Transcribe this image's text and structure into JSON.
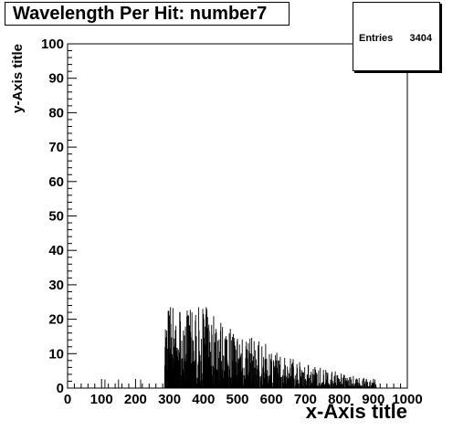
{
  "chart_data": {
    "type": "bar",
    "title": "Wavelength Per Hit: number7",
    "xlabel": "x-Axis title",
    "ylabel": "y-Axis title",
    "xlim": [
      0,
      1000
    ],
    "ylim": [
      0,
      100
    ],
    "xticks": [
      0,
      100,
      200,
      300,
      400,
      500,
      600,
      700,
      800,
      900,
      1000
    ],
    "yticks": [
      0,
      10,
      20,
      30,
      40,
      50,
      60,
      70,
      80,
      90,
      100
    ],
    "stats": {
      "label": "Entries",
      "value": "3404"
    },
    "bin_width": 1,
    "envelope": {
      "x": [
        285,
        300,
        320,
        340,
        360,
        380,
        400,
        420,
        440,
        460,
        480,
        500,
        520,
        540,
        560,
        580,
        600,
        620,
        640,
        660,
        680,
        700,
        720,
        740,
        760,
        780,
        800,
        820,
        840,
        860,
        880,
        900,
        910
      ],
      "values": [
        11,
        13,
        14,
        14,
        14,
        13,
        13,
        12,
        11,
        10,
        9,
        8,
        7.5,
        7,
        6.5,
        6,
        5.5,
        5,
        4.5,
        4,
        3.5,
        3,
        2.8,
        2.5,
        2.2,
        2,
        1.7,
        1.4,
        1.2,
        1,
        0.8,
        0.5,
        0.3
      ],
      "max_values": [
        22,
        25,
        25,
        24,
        23,
        23,
        25,
        22,
        22,
        20,
        19,
        17,
        16,
        15,
        14,
        13,
        12,
        11,
        10,
        9,
        8,
        7,
        7,
        6,
        6,
        5,
        5,
        4,
        4,
        3,
        3,
        2,
        1
      ]
    }
  }
}
